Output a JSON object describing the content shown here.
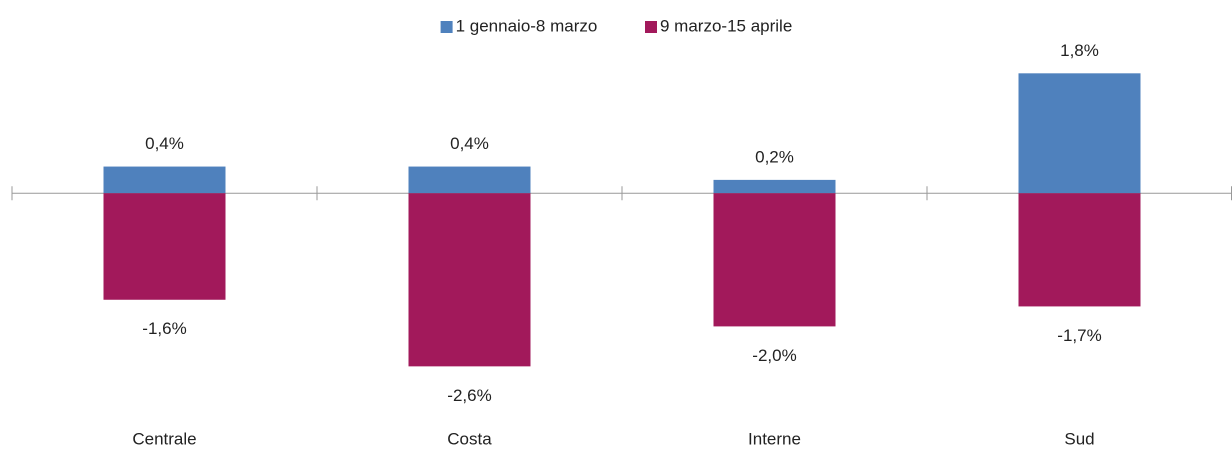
{
  "chart_data": {
    "type": "bar",
    "stacked": true,
    "categories": [
      "Centrale",
      "Costa",
      "Interne",
      "Sud"
    ],
    "series": [
      {
        "name": "1 gennaio-8 marzo",
        "color": "#4f81bd",
        "values": [
          0.4,
          0.4,
          0.2,
          1.8
        ],
        "value_labels": [
          "0,4%",
          "0,4%",
          "0,2%",
          "1,8%"
        ]
      },
      {
        "name": "9 marzo-15 aprile",
        "color": "#a2195b",
        "values": [
          -1.6,
          -2.6,
          -2.0,
          -1.7
        ],
        "value_labels": [
          "-1,6%",
          "-2,6%",
          "-2,0%",
          "-1,7%"
        ]
      }
    ],
    "ylim": [
      -3,
      2
    ],
    "legend": "top"
  }
}
